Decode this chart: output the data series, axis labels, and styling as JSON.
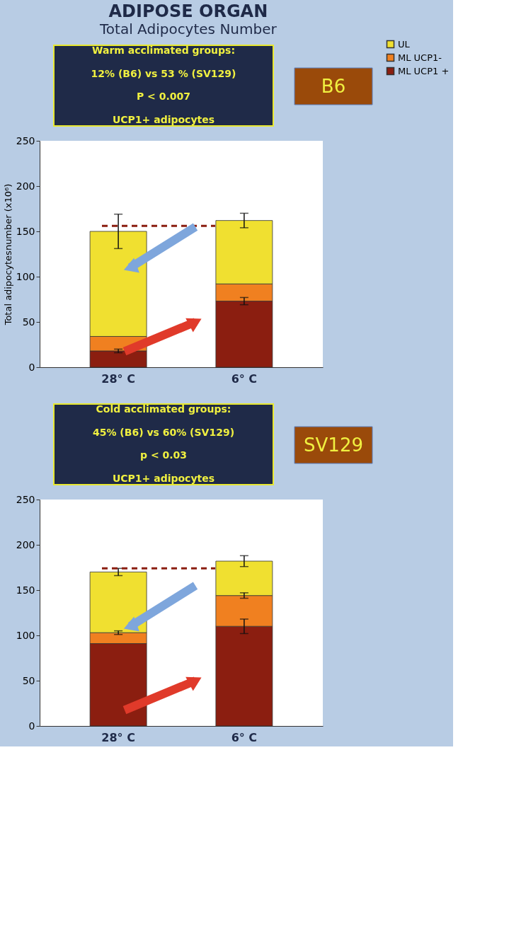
{
  "chart_data": [
    {
      "type": "bar",
      "title": "ADIPOSE ORGAN",
      "subtitle": "Total Adipocytes Number",
      "ylabel": "Total adipocytesnumber (x10⁶)",
      "categories": [
        "28° C",
        "6° C"
      ],
      "stacked": true,
      "series": [
        {
          "name": "ML UCP1 +",
          "color": "#8b1e10",
          "values": [
            18,
            73
          ],
          "errors": [
            2,
            4
          ]
        },
        {
          "name": "ML UCP1-",
          "color": "#f08020",
          "values": [
            16,
            19
          ]
        },
        {
          "name": "UL",
          "color": "#f0e030",
          "values": [
            116,
            70
          ],
          "errors": [
            19,
            8
          ]
        }
      ],
      "ylim": [
        0,
        250
      ],
      "yticks": [
        0,
        50,
        100,
        150,
        200,
        250
      ],
      "grid": false,
      "legend": "right",
      "ref_lines": [
        {
          "axis": "y",
          "value": 156,
          "color": "#8b1e10",
          "line_style": "dashed"
        }
      ],
      "annotations": [
        "B6",
        "Warm acclimated groups:",
        "12% (B6) vs 53 % (SV129)",
        "P < 0.007",
        "UCP1+ adipocytes"
      ]
    },
    {
      "type": "bar",
      "categories": [
        "28° C",
        "6° C"
      ],
      "stacked": true,
      "series": [
        {
          "name": "ML UCP1 +",
          "color": "#8b1e10",
          "values": [
            91,
            110
          ],
          "errors": [
            null,
            8
          ]
        },
        {
          "name": "ML UCP1-",
          "color": "#f08020",
          "values": [
            12,
            34
          ],
          "errors": [
            2,
            3
          ]
        },
        {
          "name": "UL",
          "color": "#f0e030",
          "values": [
            67,
            38
          ],
          "errors": [
            4,
            6
          ]
        }
      ],
      "ylim": [
        0,
        250
      ],
      "yticks": [
        0,
        50,
        100,
        150,
        200,
        250
      ],
      "grid": false,
      "legend": "right",
      "ref_lines": [
        {
          "axis": "y",
          "value": 174,
          "color": "#8b1e10",
          "line_style": "dashed"
        }
      ],
      "annotations": [
        "SV129",
        "Cold acclimated groups:",
        "45% (B6) vs 60% (SV129)",
        "p < 0.03",
        "UCP1+ adipocytes"
      ]
    }
  ]
}
